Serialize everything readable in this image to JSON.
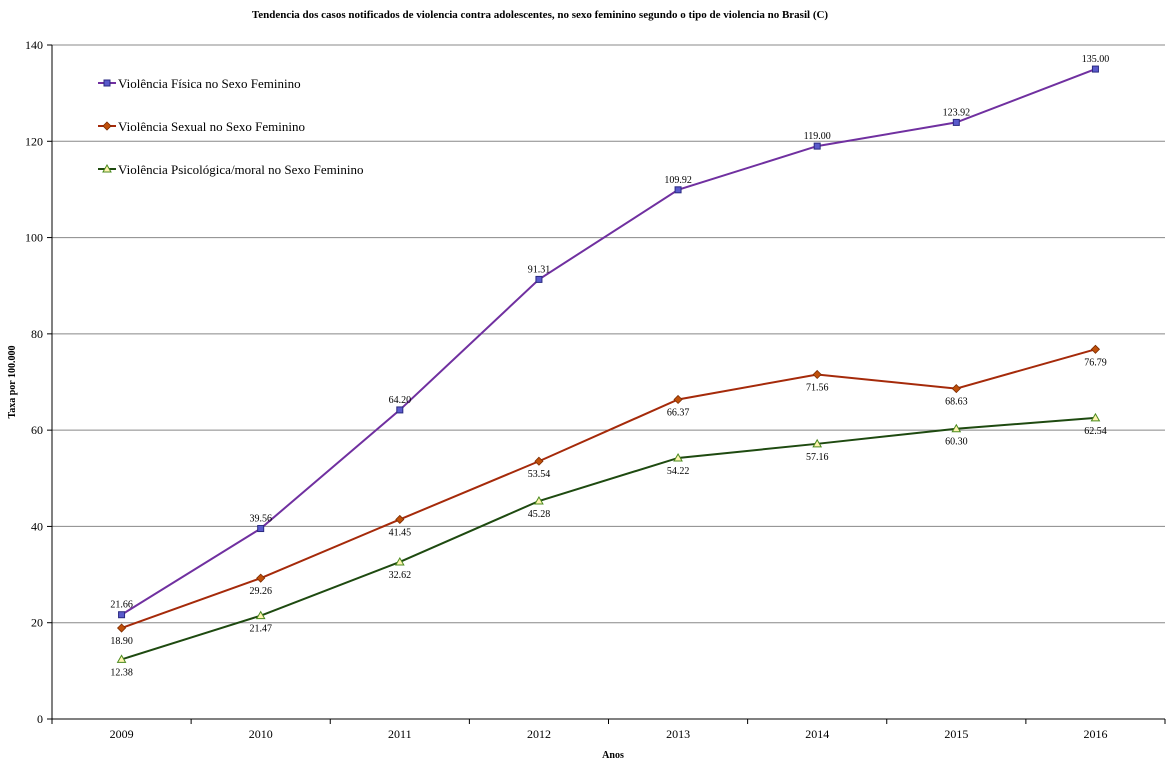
{
  "chart_data": {
    "type": "line",
    "title": "Tendencia dos casos notificados de violencia  contra adolescentes, no sexo feminino segundo o tipo de violencia no Brasil  (C)",
    "xlabel": "Anos",
    "ylabel": "Taxa  por 100.000",
    "categories": [
      "2009",
      "2010",
      "2011",
      "2012",
      "2013",
      "2014",
      "2015",
      "2016"
    ],
    "ylim": [
      0,
      140
    ],
    "yticks": [
      "0",
      "20",
      "40",
      "60",
      "80",
      "100",
      "120",
      "140"
    ],
    "grid": true,
    "legend_position": "top-left",
    "series": [
      {
        "name": "Violência Física no Sexo Feminino",
        "color": "#7030A0",
        "marker_color": "#3333AA",
        "marker": "square",
        "values": [
          21.66,
          39.56,
          64.2,
          91.31,
          109.92,
          119.0,
          123.92,
          135.0
        ],
        "labels": [
          "21.66",
          "39.56",
          "64.20",
          "91.31",
          "109.92",
          "119.00",
          "123.92",
          "135.00"
        ]
      },
      {
        "name": "Violência Sexual no Sexo Feminino",
        "color": "#A52A0A",
        "marker_color": "#C0500A",
        "marker": "diamond",
        "values": [
          18.9,
          29.26,
          41.45,
          53.54,
          66.37,
          71.56,
          68.63,
          76.79
        ],
        "labels": [
          "18.90",
          "29.26",
          "41.45",
          "53.54",
          "66.37",
          "71.56",
          "68.63",
          "76.79"
        ]
      },
      {
        "name": "Violência Psicológica/moral no Sexo Feminino",
        "color": "#1E4A10",
        "marker_color": "#4A8A1E",
        "marker": "triangle",
        "values": [
          12.38,
          21.47,
          32.62,
          45.28,
          54.22,
          57.16,
          60.3,
          62.54
        ],
        "labels": [
          "12.38",
          "21.47",
          "32.62",
          "45.28",
          "54.22",
          "57.16",
          "60.30",
          "62.54"
        ]
      }
    ]
  }
}
